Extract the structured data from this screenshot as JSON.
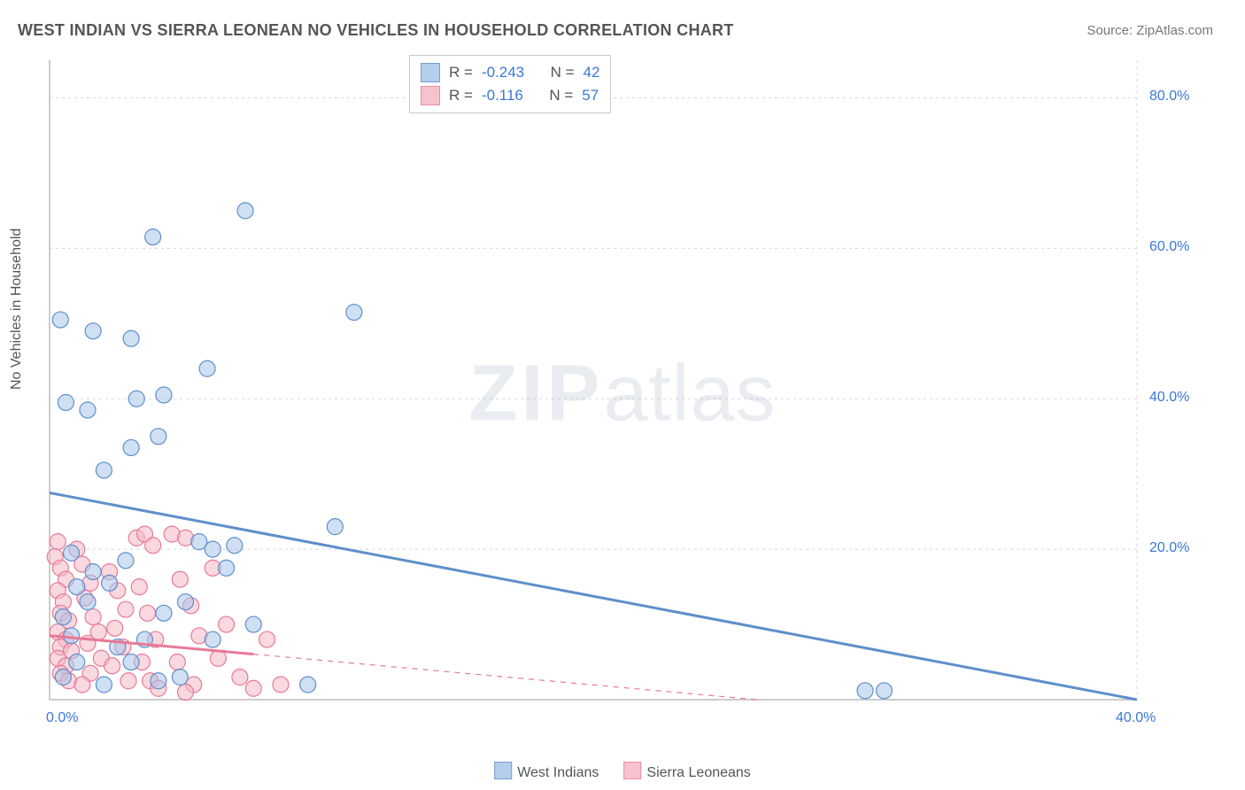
{
  "title": "WEST INDIAN VS SIERRA LEONEAN NO VEHICLES IN HOUSEHOLD CORRELATION CHART",
  "source": "Source: ZipAtlas.com",
  "ylabel": "No Vehicles in Household",
  "watermark_zip": "ZIP",
  "watermark_atlas": "atlas",
  "chart": {
    "type": "scatter",
    "xlim": [
      0,
      40
    ],
    "ylim": [
      0,
      85
    ],
    "y_ticks": [
      20,
      40,
      60,
      80
    ],
    "y_tick_labels": [
      "20.0%",
      "40.0%",
      "60.0%",
      "80.0%"
    ],
    "x_ticks": [
      0,
      40
    ],
    "x_tick_labels": [
      "0.0%",
      "40.0%"
    ],
    "grid_color": "#d8d8d8",
    "grid_dash": "3,4",
    "axis_color": "#bcbcbc",
    "background_color": "#ffffff",
    "marker_radius": 9,
    "marker_stroke_width": 1.2,
    "trend_line_width": 3,
    "series": [
      {
        "name": "West Indians",
        "label": "West Indians",
        "fill": "#a8c6ea",
        "stroke": "#5e8fca",
        "fill_opacity": 0.55,
        "R": "-0.243",
        "N": "42",
        "trend": {
          "x1": 0,
          "y1": 27.5,
          "x2": 40,
          "y2": -1.0,
          "dash": null
        },
        "points": [
          [
            0.4,
            50.5
          ],
          [
            1.6,
            49.0
          ],
          [
            3.0,
            48.0
          ],
          [
            0.6,
            39.5
          ],
          [
            1.4,
            38.5
          ],
          [
            3.2,
            40.0
          ],
          [
            4.2,
            40.5
          ],
          [
            5.8,
            44.0
          ],
          [
            7.2,
            65.0
          ],
          [
            3.8,
            61.5
          ],
          [
            4.0,
            35.0
          ],
          [
            3.0,
            33.5
          ],
          [
            2.0,
            30.5
          ],
          [
            11.2,
            51.5
          ],
          [
            5.5,
            21.0
          ],
          [
            6.0,
            20.0
          ],
          [
            6.8,
            20.5
          ],
          [
            10.5,
            23.0
          ],
          [
            0.8,
            19.5
          ],
          [
            1.6,
            17.0
          ],
          [
            2.2,
            15.5
          ],
          [
            4.2,
            11.5
          ],
          [
            5.0,
            13.0
          ],
          [
            6.5,
            17.5
          ],
          [
            9.5,
            2.0
          ],
          [
            4.8,
            3.0
          ],
          [
            30.0,
            1.2
          ],
          [
            30.7,
            1.2
          ],
          [
            2.5,
            7.0
          ],
          [
            3.5,
            8.0
          ],
          [
            0.5,
            11.0
          ],
          [
            0.8,
            8.5
          ],
          [
            1.0,
            15.0
          ],
          [
            1.4,
            13.0
          ],
          [
            2.8,
            18.5
          ],
          [
            4.0,
            2.5
          ],
          [
            6.0,
            8.0
          ],
          [
            7.5,
            10.0
          ],
          [
            1.0,
            5.0
          ],
          [
            0.5,
            3.0
          ],
          [
            3.0,
            5.0
          ],
          [
            2.0,
            2.0
          ]
        ]
      },
      {
        "name": "Sierra Leoneans",
        "label": "Sierra Leoneans",
        "fill": "#f4b8c6",
        "stroke": "#e77a97",
        "fill_opacity": 0.55,
        "R": "-0.116",
        "N": "57",
        "trend": {
          "x1": 0,
          "y1": 8.5,
          "x2": 26,
          "y2": 0.0,
          "dash": "6,5"
        },
        "trend_solid_until": 7.5,
        "points": [
          [
            0.3,
            21.0
          ],
          [
            0.2,
            19.0
          ],
          [
            0.4,
            17.5
          ],
          [
            0.6,
            16.0
          ],
          [
            0.3,
            14.5
          ],
          [
            0.5,
            13.0
          ],
          [
            0.4,
            11.5
          ],
          [
            0.7,
            10.5
          ],
          [
            0.3,
            9.0
          ],
          [
            0.6,
            8.0
          ],
          [
            0.4,
            7.0
          ],
          [
            0.8,
            6.5
          ],
          [
            0.3,
            5.5
          ],
          [
            0.6,
            4.5
          ],
          [
            0.4,
            3.5
          ],
          [
            0.7,
            2.5
          ],
          [
            1.0,
            20.0
          ],
          [
            1.2,
            18.0
          ],
          [
            1.5,
            15.5
          ],
          [
            1.3,
            13.5
          ],
          [
            1.6,
            11.0
          ],
          [
            1.8,
            9.0
          ],
          [
            1.4,
            7.5
          ],
          [
            1.9,
            5.5
          ],
          [
            1.5,
            3.5
          ],
          [
            1.2,
            2.0
          ],
          [
            2.2,
            17.0
          ],
          [
            2.5,
            14.5
          ],
          [
            2.8,
            12.0
          ],
          [
            2.4,
            9.5
          ],
          [
            2.7,
            7.0
          ],
          [
            2.3,
            4.5
          ],
          [
            2.9,
            2.5
          ],
          [
            3.2,
            21.5
          ],
          [
            3.5,
            22.0
          ],
          [
            3.8,
            20.5
          ],
          [
            3.3,
            15.0
          ],
          [
            3.6,
            11.5
          ],
          [
            3.9,
            8.0
          ],
          [
            3.4,
            5.0
          ],
          [
            3.7,
            2.5
          ],
          [
            4.5,
            22.0
          ],
          [
            5.0,
            21.5
          ],
          [
            4.8,
            16.0
          ],
          [
            5.2,
            12.5
          ],
          [
            5.5,
            8.5
          ],
          [
            4.7,
            5.0
          ],
          [
            5.3,
            2.0
          ],
          [
            6.0,
            17.5
          ],
          [
            6.5,
            10.0
          ],
          [
            6.2,
            5.5
          ],
          [
            7.0,
            3.0
          ],
          [
            7.5,
            1.5
          ],
          [
            8.0,
            8.0
          ],
          [
            8.5,
            2.0
          ],
          [
            5.0,
            1.0
          ],
          [
            4.0,
            1.5
          ]
        ]
      }
    ]
  },
  "stat_legend": {
    "R_label": "R =",
    "N_label": "N ="
  },
  "bottom_legend": {
    "items": [
      "West Indians",
      "Sierra Leoneans"
    ]
  }
}
